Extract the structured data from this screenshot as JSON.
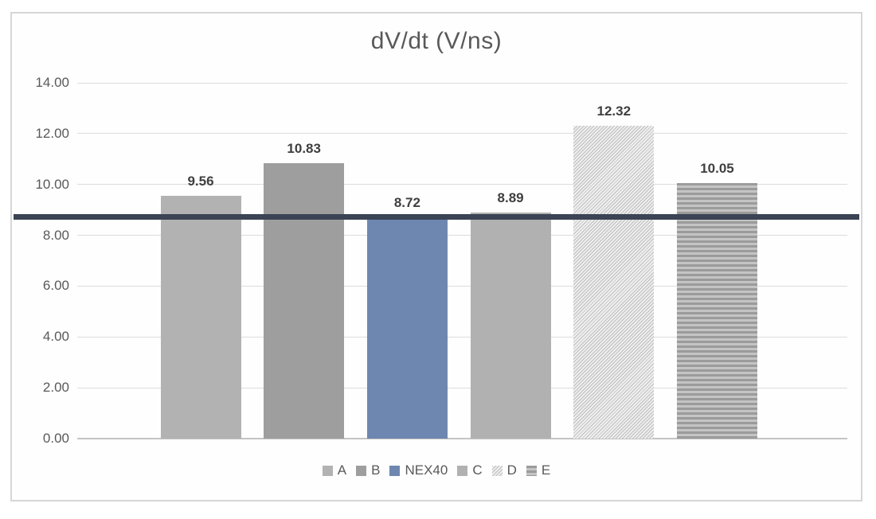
{
  "chart_data": {
    "type": "bar",
    "title": "dV/dt (V/ns)",
    "categories": [
      "A",
      "B",
      "NEX40",
      "C",
      "D",
      "E"
    ],
    "values": [
      9.56,
      10.83,
      8.72,
      8.89,
      12.32,
      10.05
    ],
    "value_labels": [
      "9.56",
      "10.83",
      "8.72",
      "8.89",
      "12.32",
      "10.05"
    ],
    "xlabel": "",
    "ylabel": "",
    "ylim": [
      0,
      14
    ],
    "ytick_step": 2,
    "ytick_labels": [
      "0.00",
      "2.00",
      "4.00",
      "6.00",
      "8.00",
      "10.00",
      "12.00",
      "14.00"
    ],
    "grid": true,
    "legend_position": "bottom",
    "reference_line": {
      "value": 8.72,
      "color": "#3b4454"
    },
    "series_styles": [
      {
        "name": "A",
        "fill": "#b2b2b2",
        "pattern": "solid"
      },
      {
        "name": "B",
        "fill": "#9e9e9e",
        "pattern": "solid"
      },
      {
        "name": "NEX40",
        "fill": "#6e87b0",
        "pattern": "solid"
      },
      {
        "name": "C",
        "fill": "#b1b1b1",
        "pattern": "solid"
      },
      {
        "name": "D",
        "fill": "#d9d9d9",
        "pattern": "diagonal-hatch"
      },
      {
        "name": "E",
        "fill": "#ababab",
        "pattern": "horizontal-stripes"
      }
    ],
    "colors": {
      "title_text": "#595959",
      "axis_text": "#595959",
      "gridline": "#dcdcdc",
      "frame_border": "#d6d6d6",
      "reference_line": "#3b4454"
    }
  }
}
